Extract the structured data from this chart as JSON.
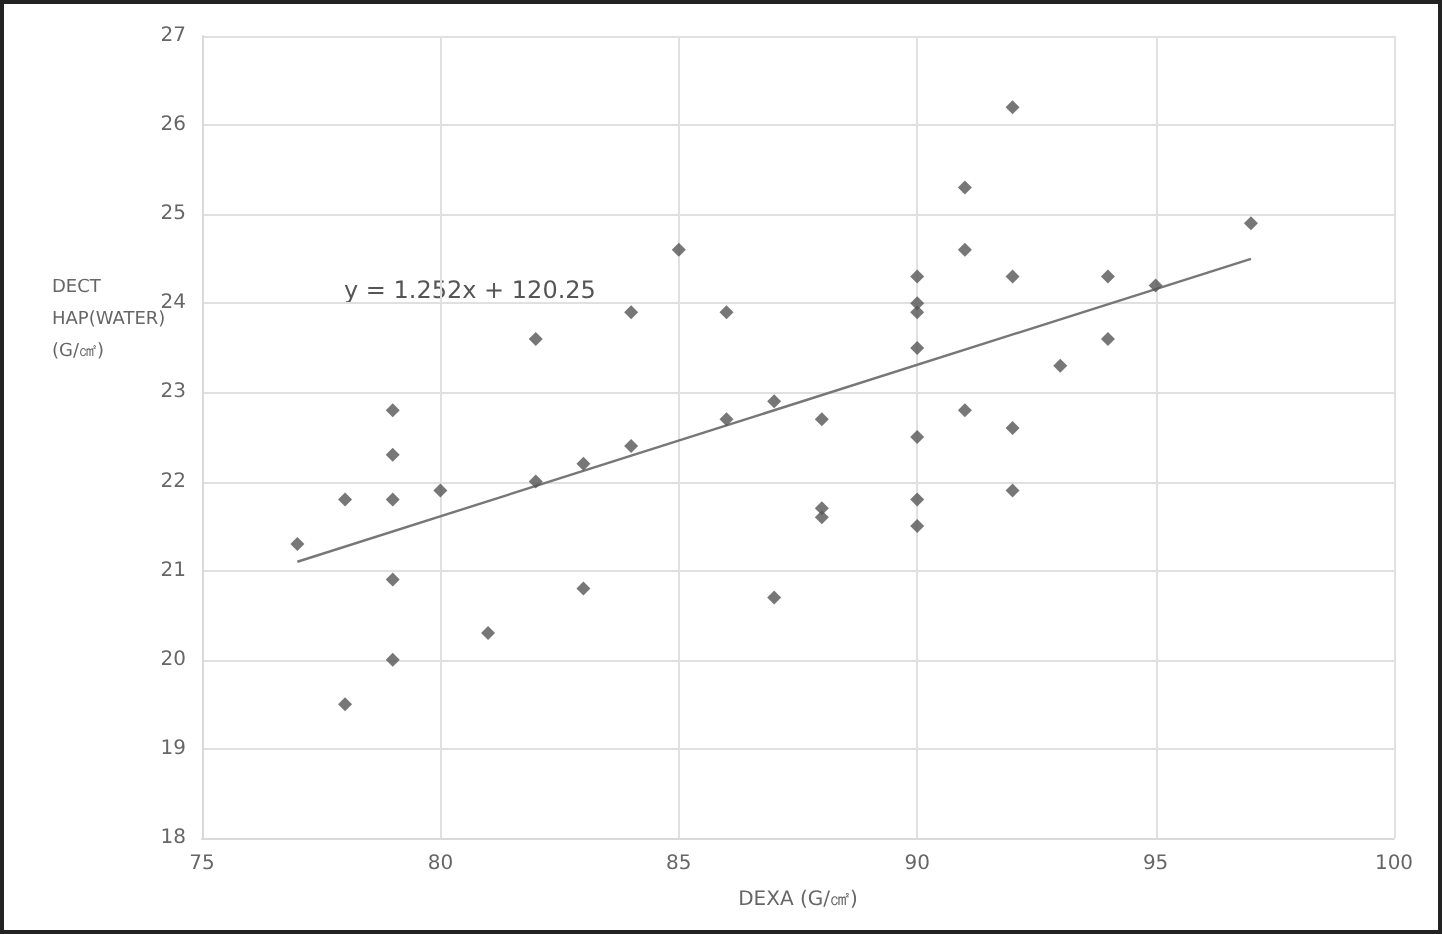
{
  "chart_data": {
    "type": "scatter",
    "xlabel": "DEXA (G/㎠)",
    "ylabel": "DECT HAP(WATER) (G/㎠)",
    "annotations": [
      "y = 1.252x + 120.25"
    ],
    "xlim": [
      75,
      100
    ],
    "xticks": [
      75,
      80,
      85,
      90,
      95,
      100
    ],
    "ylim": [
      18,
      27
    ],
    "yticks": [
      18,
      19,
      20,
      21,
      22,
      23,
      24,
      25,
      26,
      27
    ],
    "grid": true,
    "marker": "diamond",
    "series": [
      {
        "color": "#555555",
        "x": [
          77,
          78,
          78,
          79,
          79,
          79,
          79,
          79,
          80,
          81,
          82,
          82,
          83,
          83,
          84,
          84,
          85,
          86,
          86,
          87,
          87,
          88,
          88,
          88,
          90,
          90,
          90,
          90,
          90,
          90,
          90,
          91,
          91,
          91,
          92,
          92,
          92,
          92,
          93,
          94,
          94,
          95,
          97
        ],
        "values": [
          21.3,
          21.8,
          19.5,
          22.8,
          22.3,
          21.8,
          20.9,
          20.0,
          21.9,
          20.3,
          23.6,
          22.0,
          22.2,
          20.8,
          23.9,
          22.4,
          24.6,
          23.9,
          22.7,
          22.9,
          20.7,
          22.7,
          21.7,
          21.6,
          24.3,
          24.0,
          23.9,
          23.5,
          22.5,
          21.8,
          21.5,
          25.3,
          24.6,
          22.8,
          26.2,
          24.3,
          22.6,
          21.9,
          23.3,
          24.3,
          23.6,
          24.2,
          24.9
        ]
      },
      {
        "type": "line",
        "color": "#777777",
        "marker": "none",
        "line_style": "solid",
        "x": [
          77,
          97
        ],
        "values": [
          21.1,
          24.5
        ]
      }
    ]
  }
}
